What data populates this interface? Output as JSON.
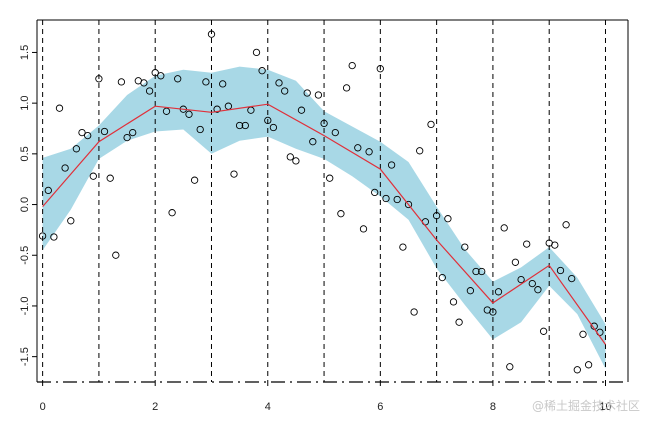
{
  "chart_data": {
    "type": "scatter",
    "title": "",
    "xlabel": "",
    "ylabel": "",
    "xlim": [
      -0.1,
      10.4
    ],
    "ylim": [
      -1.75,
      1.82
    ],
    "x_ticks": [
      0,
      2,
      4,
      6,
      8,
      10
    ],
    "x_tick_labels": [
      "0",
      "2",
      "4",
      "6",
      "8",
      "10"
    ],
    "y_ticks": [
      -1.5,
      -1.0,
      -0.5,
      0.0,
      0.5,
      1.0,
      1.5
    ],
    "y_tick_labels": [
      "-1.5",
      "-1.0",
      "-0.5",
      "0.0",
      "0.5",
      "1.0",
      "1.5"
    ],
    "knots": [
      0,
      1,
      2,
      3,
      4,
      5,
      6,
      7,
      8,
      9,
      10
    ],
    "fit_line": {
      "x": [
        0,
        1,
        2,
        3,
        4,
        5,
        6,
        7,
        8,
        9,
        10
      ],
      "y": [
        -0.02,
        0.62,
        0.97,
        0.91,
        0.99,
        0.68,
        0.35,
        -0.35,
        -0.97,
        -0.6,
        -1.38
      ],
      "color": "#e0303a"
    },
    "confidence_band": {
      "x": [
        0,
        0.5,
        1,
        1.5,
        2,
        2.5,
        3,
        3.5,
        4,
        4.5,
        5,
        5.5,
        6,
        6.5,
        7,
        7.5,
        8,
        8.5,
        9,
        9.5,
        10
      ],
      "upper": [
        0.46,
        0.55,
        0.78,
        1.08,
        1.27,
        1.33,
        1.3,
        1.36,
        1.33,
        1.22,
        0.92,
        0.77,
        0.62,
        0.42,
        -0.02,
        -0.44,
        -0.76,
        -0.62,
        -0.42,
        -0.72,
        -1.18
      ],
      "lower": [
        -0.45,
        -0.05,
        0.45,
        0.63,
        0.72,
        0.74,
        0.5,
        0.63,
        0.67,
        0.55,
        0.45,
        0.28,
        0.08,
        -0.15,
        -0.63,
        -0.99,
        -1.33,
        -1.16,
        -0.8,
        -1.08,
        -1.62
      ],
      "color": "#a8d8e6"
    },
    "points": [
      {
        "x": 0.0,
        "y": -0.31
      },
      {
        "x": 0.1,
        "y": 0.14
      },
      {
        "x": 0.2,
        "y": -0.32
      },
      {
        "x": 0.3,
        "y": 0.95
      },
      {
        "x": 0.4,
        "y": 0.36
      },
      {
        "x": 0.5,
        "y": -0.16
      },
      {
        "x": 0.6,
        "y": 0.55
      },
      {
        "x": 0.7,
        "y": 0.71
      },
      {
        "x": 0.8,
        "y": 0.68
      },
      {
        "x": 0.9,
        "y": 0.28
      },
      {
        "x": 1.0,
        "y": 1.24
      },
      {
        "x": 1.1,
        "y": 0.72
      },
      {
        "x": 1.2,
        "y": 0.26
      },
      {
        "x": 1.3,
        "y": -0.5
      },
      {
        "x": 1.4,
        "y": 1.21
      },
      {
        "x": 1.5,
        "y": 0.66
      },
      {
        "x": 1.6,
        "y": 0.71
      },
      {
        "x": 1.7,
        "y": 1.22
      },
      {
        "x": 1.8,
        "y": 1.2
      },
      {
        "x": 1.9,
        "y": 1.12
      },
      {
        "x": 2.0,
        "y": 1.3
      },
      {
        "x": 2.1,
        "y": 1.27
      },
      {
        "x": 2.2,
        "y": 0.92
      },
      {
        "x": 2.3,
        "y": -0.08
      },
      {
        "x": 2.4,
        "y": 1.24
      },
      {
        "x": 2.5,
        "y": 0.94
      },
      {
        "x": 2.6,
        "y": 0.89
      },
      {
        "x": 2.7,
        "y": 0.24
      },
      {
        "x": 2.8,
        "y": 0.74
      },
      {
        "x": 2.9,
        "y": 1.21
      },
      {
        "x": 3.0,
        "y": 1.68
      },
      {
        "x": 3.1,
        "y": 0.94
      },
      {
        "x": 3.2,
        "y": 1.19
      },
      {
        "x": 3.3,
        "y": 0.97
      },
      {
        "x": 3.4,
        "y": 0.3
      },
      {
        "x": 3.5,
        "y": 0.78
      },
      {
        "x": 3.6,
        "y": 0.78
      },
      {
        "x": 3.7,
        "y": 0.93
      },
      {
        "x": 3.8,
        "y": 1.5
      },
      {
        "x": 3.9,
        "y": 1.32
      },
      {
        "x": 4.0,
        "y": 0.83
      },
      {
        "x": 4.1,
        "y": 0.76
      },
      {
        "x": 4.2,
        "y": 1.2
      },
      {
        "x": 4.3,
        "y": 1.12
      },
      {
        "x": 4.4,
        "y": 0.47
      },
      {
        "x": 4.5,
        "y": 0.43
      },
      {
        "x": 4.6,
        "y": 0.93
      },
      {
        "x": 4.7,
        "y": 1.1
      },
      {
        "x": 4.8,
        "y": 0.62
      },
      {
        "x": 4.9,
        "y": 1.08
      },
      {
        "x": 5.0,
        "y": 0.8
      },
      {
        "x": 5.1,
        "y": 0.26
      },
      {
        "x": 5.2,
        "y": 0.71
      },
      {
        "x": 5.3,
        "y": -0.09
      },
      {
        "x": 5.4,
        "y": 1.15
      },
      {
        "x": 5.5,
        "y": 1.37
      },
      {
        "x": 5.6,
        "y": 0.56
      },
      {
        "x": 5.7,
        "y": -0.24
      },
      {
        "x": 5.8,
        "y": 0.52
      },
      {
        "x": 5.9,
        "y": 0.12
      },
      {
        "x": 6.0,
        "y": 1.34
      },
      {
        "x": 6.1,
        "y": 0.06
      },
      {
        "x": 6.2,
        "y": 0.39
      },
      {
        "x": 6.3,
        "y": 0.05
      },
      {
        "x": 6.4,
        "y": -0.42
      },
      {
        "x": 6.5,
        "y": 0.0
      },
      {
        "x": 6.6,
        "y": -1.06
      },
      {
        "x": 6.7,
        "y": 0.53
      },
      {
        "x": 6.8,
        "y": -0.17
      },
      {
        "x": 6.9,
        "y": 0.79
      },
      {
        "x": 7.0,
        "y": -0.11
      },
      {
        "x": 7.1,
        "y": -0.72
      },
      {
        "x": 7.2,
        "y": -0.14
      },
      {
        "x": 7.3,
        "y": -0.96
      },
      {
        "x": 7.4,
        "y": -1.16
      },
      {
        "x": 7.5,
        "y": -0.42
      },
      {
        "x": 7.6,
        "y": -0.85
      },
      {
        "x": 7.7,
        "y": -0.66
      },
      {
        "x": 7.8,
        "y": -0.66
      },
      {
        "x": 7.9,
        "y": -1.04
      },
      {
        "x": 8.0,
        "y": -1.06
      },
      {
        "x": 8.1,
        "y": -0.86
      },
      {
        "x": 8.2,
        "y": -0.23
      },
      {
        "x": 8.3,
        "y": -1.6
      },
      {
        "x": 8.4,
        "y": -0.57
      },
      {
        "x": 8.5,
        "y": -0.74
      },
      {
        "x": 8.6,
        "y": -0.39
      },
      {
        "x": 8.7,
        "y": -0.78
      },
      {
        "x": 8.8,
        "y": -0.84
      },
      {
        "x": 8.9,
        "y": -1.25
      },
      {
        "x": 9.0,
        "y": -0.38
      },
      {
        "x": 9.1,
        "y": -0.4
      },
      {
        "x": 9.2,
        "y": -0.65
      },
      {
        "x": 9.3,
        "y": -0.2
      },
      {
        "x": 9.4,
        "y": -0.73
      },
      {
        "x": 9.5,
        "y": -1.63
      },
      {
        "x": 9.6,
        "y": -1.28
      },
      {
        "x": 9.7,
        "y": -1.58
      },
      {
        "x": 9.8,
        "y": -1.2
      },
      {
        "x": 9.9,
        "y": -1.26
      }
    ],
    "grid": false,
    "legend": "none"
  },
  "watermark": "@稀土掘金技术社区"
}
